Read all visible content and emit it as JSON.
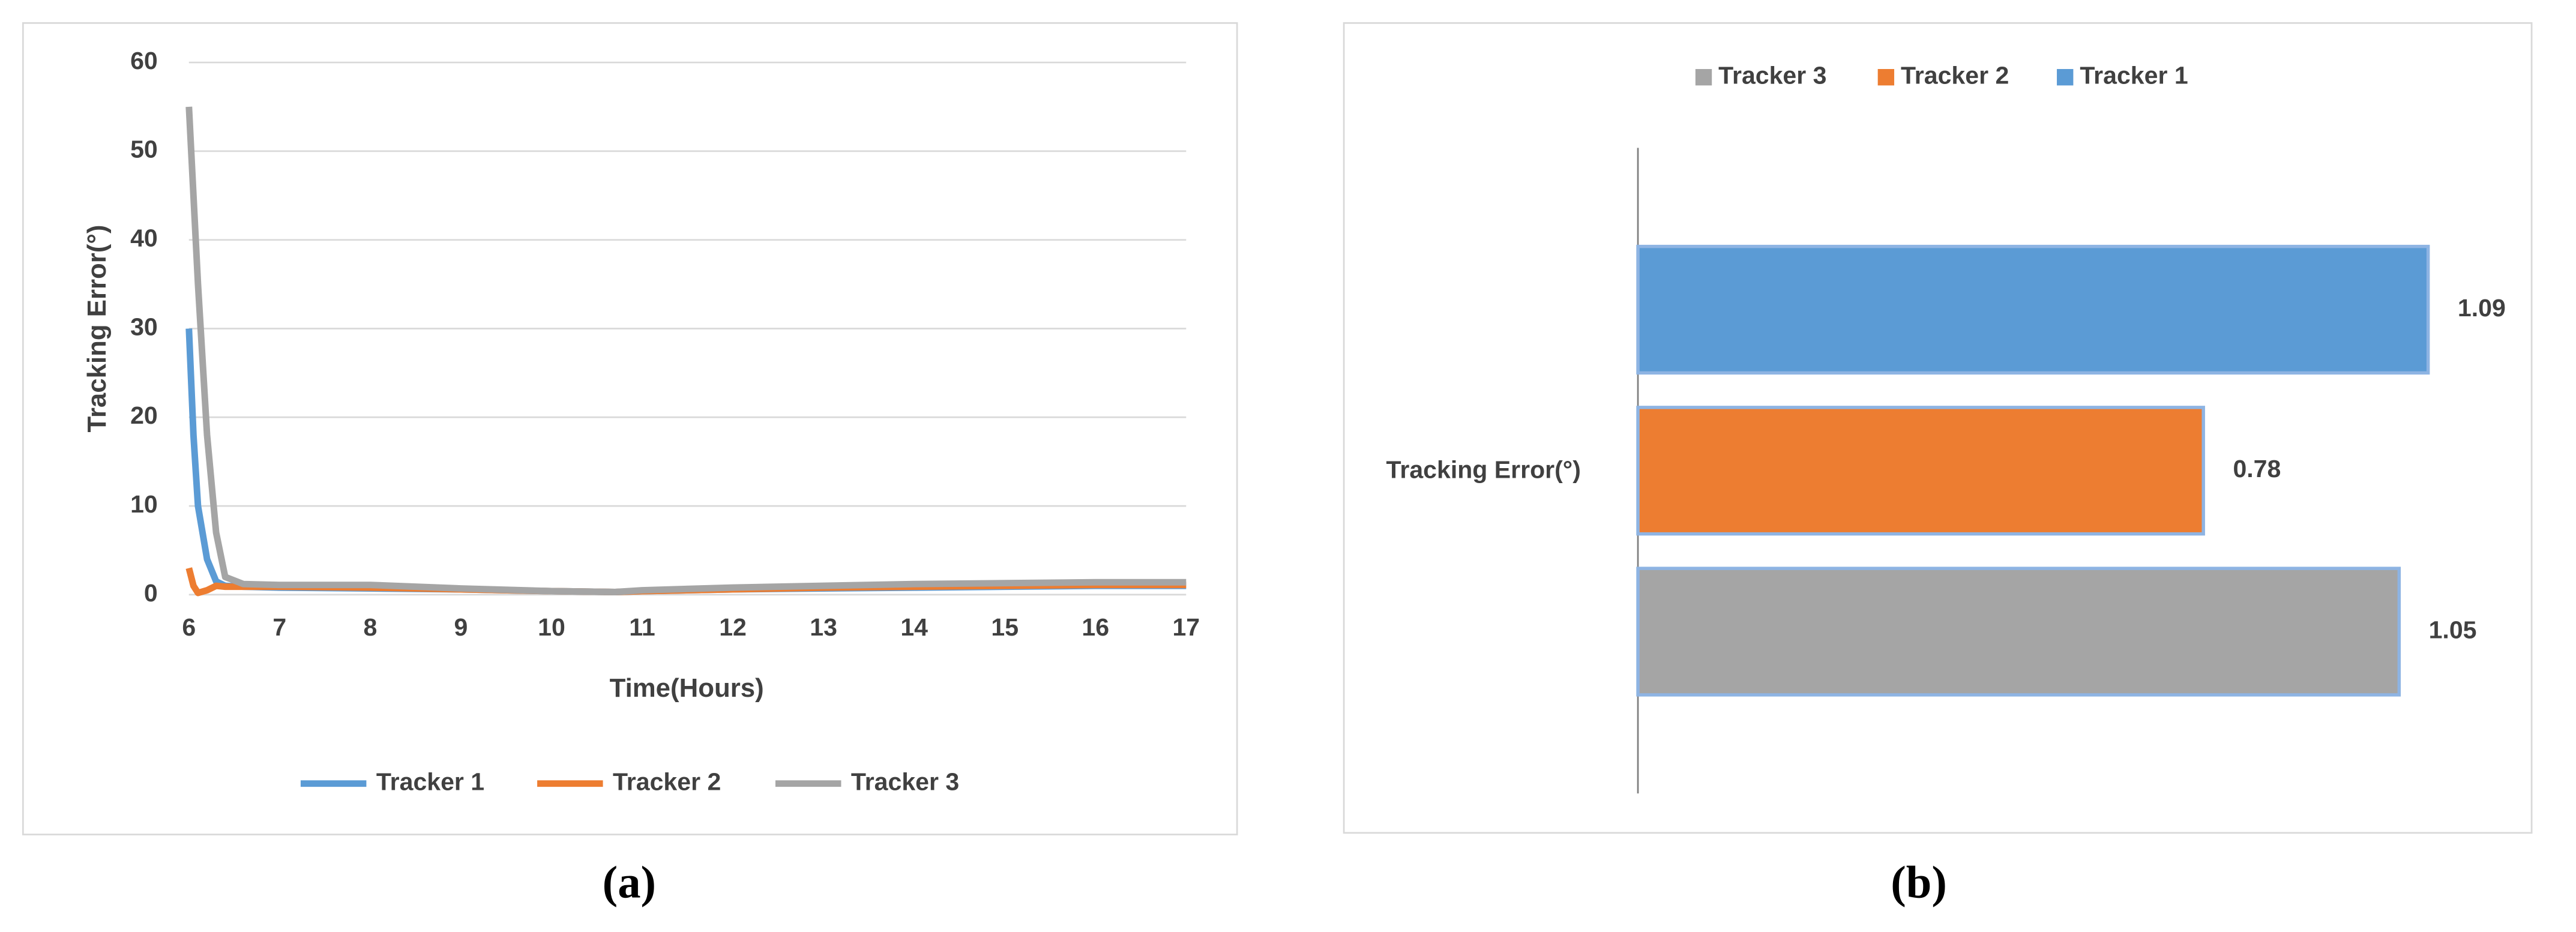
{
  "chart_data": [
    {
      "type": "line",
      "x_label": "Time(Hours)",
      "y_label": "Tracking Error(°)",
      "x": [
        6,
        6.05,
        6.1,
        6.2,
        6.3,
        6.4,
        6.6,
        7,
        8,
        9,
        10,
        10.7,
        11,
        12,
        13,
        14,
        15,
        16,
        17
      ],
      "xlim": [
        6,
        17
      ],
      "xticks": [
        6,
        7,
        8,
        9,
        10,
        11,
        12,
        13,
        14,
        15,
        16,
        17
      ],
      "ylim": [
        0,
        60
      ],
      "yticks": [
        0,
        10,
        20,
        30,
        40,
        50,
        60
      ],
      "grid": true,
      "legend": "bottom",
      "series": [
        {
          "name": "Tracker 1",
          "color": "#5b9bd5",
          "values": [
            30,
            18,
            10,
            4,
            1.5,
            1,
            0.9,
            0.8,
            0.7,
            0.6,
            0.4,
            0.3,
            0.4,
            0.6,
            0.7,
            0.8,
            0.9,
            1,
            1
          ]
        },
        {
          "name": "Tracker 2",
          "color": "#ed7d31",
          "values": [
            3,
            1,
            0.2,
            0.5,
            1,
            0.9,
            0.9,
            0.9,
            0.8,
            0.6,
            0.4,
            0.3,
            0.4,
            0.6,
            0.8,
            0.9,
            1,
            1.1,
            1.1
          ]
        },
        {
          "name": "Tracker 3",
          "color": "#a5a5a5",
          "values": [
            55,
            45,
            35,
            18,
            7,
            2,
            1.2,
            1.1,
            1.1,
            0.7,
            0.4,
            0.3,
            0.5,
            0.8,
            1,
            1.2,
            1.3,
            1.4,
            1.4
          ]
        }
      ]
    },
    {
      "type": "bar",
      "horizontal": true,
      "categories": [
        "Tracking Error(°)"
      ],
      "legend": "top",
      "series": [
        {
          "name": "Tracker 1",
          "color": "#5b9bd5",
          "values": [
            1.09
          ]
        },
        {
          "name": "Tracker 2",
          "color": "#ed7d31",
          "values": [
            0.78
          ]
        },
        {
          "name": "Tracker 3",
          "color": "#a5a5a5",
          "values": [
            1.05
          ]
        }
      ]
    }
  ],
  "captions": [
    "(a)",
    "(b)"
  ]
}
